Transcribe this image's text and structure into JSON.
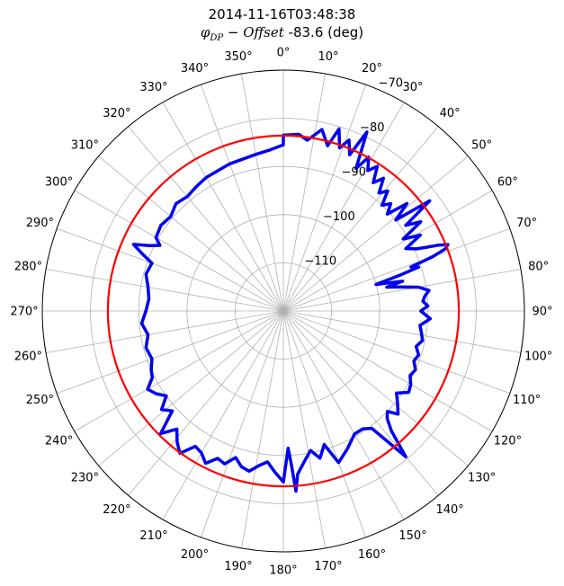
{
  "chart_data": {
    "type": "line",
    "projection": "polar",
    "title": "2014-11-16T03:48:38",
    "subtitle": {
      "symbol": "φ",
      "subscript": "DP",
      "operator": " − ",
      "term": "Offset",
      "rest": " -83.6 (deg)"
    },
    "theta_direction": "clockwise",
    "theta_zero": "top",
    "theta_ticks": [
      "0°",
      "10°",
      "20°",
      "30°",
      "40°",
      "50°",
      "60°",
      "70°",
      "80°",
      "90°",
      "100°",
      "110°",
      "120°",
      "130°",
      "140°",
      "150°",
      "160°",
      "170°",
      "180°",
      "190°",
      "200°",
      "210°",
      "220°",
      "230°",
      "240°",
      "250°",
      "260°",
      "270°",
      "280°",
      "290°",
      "300°",
      "310°",
      "320°",
      "330°",
      "340°",
      "350°"
    ],
    "r_ticks": [
      "−110",
      "−100",
      "−90",
      "−80",
      "−70"
    ],
    "r_tick_values": [
      -110,
      -100,
      -90,
      -80,
      -70
    ],
    "rlim": [
      -120,
      -70
    ],
    "grid": true,
    "series": [
      {
        "color": "#0000ee",
        "theta_deg": [
          0,
          5,
          8,
          12,
          15,
          17,
          19,
          21,
          23,
          25,
          27,
          29,
          31,
          33,
          35,
          37,
          39,
          41,
          43,
          45,
          47,
          49,
          51,
          53,
          55,
          57,
          59,
          61,
          63,
          65,
          66,
          67,
          68,
          69,
          70,
          71,
          72,
          73,
          74,
          75,
          76,
          77,
          78,
          80,
          82,
          84,
          86,
          88,
          90,
          93,
          96,
          99,
          102,
          105,
          108,
          111,
          114,
          117,
          120,
          123,
          126,
          129,
          132,
          134,
          136,
          138,
          140,
          143,
          146,
          150,
          155,
          160,
          163,
          166,
          169,
          172,
          175,
          176,
          177,
          178,
          180,
          183,
          186,
          189,
          192,
          195,
          198,
          201,
          204,
          207,
          210,
          213,
          216,
          219,
          222,
          225,
          228,
          231,
          234,
          237,
          240,
          243,
          246,
          250,
          255,
          260,
          265,
          270,
          275,
          280,
          285,
          290,
          292,
          294,
          296,
          298,
          300,
          305,
          310,
          315,
          320,
          325,
          330,
          340,
          350,
          355,
          360
        ],
        "r": [
          -83.5,
          -83.2,
          -84.2,
          -81.5,
          -84.5,
          -80.5,
          -84.2,
          -82,
          -84.8,
          -79,
          -86.8,
          -83.5,
          -86,
          -84.2,
          -87.5,
          -85.5,
          -88.5,
          -87,
          -90,
          -88.5,
          -90.5,
          -86,
          -90,
          -82,
          -89,
          -86,
          -91,
          -87.5,
          -91.5,
          -89.5,
          -87.5,
          -85,
          -83.2,
          -84,
          -87,
          -92,
          -90.5,
          -95,
          -100,
          -97.5,
          -94.5,
          -98,
          -96,
          -91.5,
          -89.5,
          -90.5,
          -91,
          -90,
          -91.5,
          -89.5,
          -91.5,
          -91,
          -90.5,
          -91.5,
          -90.5,
          -91,
          -90,
          -90.5,
          -89.5,
          -89,
          -91,
          -89.5,
          -88,
          -90,
          -89,
          -86.5,
          -80.5,
          -89.5,
          -90.5,
          -90.5,
          -88.5,
          -86.5,
          -91,
          -88.5,
          -90.5,
          -88.5,
          -86,
          -82.5,
          -88,
          -91.5,
          -84.5,
          -86.5,
          -88.5,
          -87.5,
          -86,
          -86.5,
          -88,
          -86,
          -86.5,
          -84.5,
          -86,
          -86.5,
          -83.5,
          -85,
          -87,
          -84,
          -89,
          -87.5,
          -90,
          -88.5,
          -87.5,
          -89.5,
          -90,
          -91,
          -90.5,
          -91.5,
          -90.5,
          -91.5,
          -92,
          -91.5,
          -90.5,
          -91,
          -88.5,
          -86,
          -89,
          -91,
          -89.5,
          -89,
          -89.5,
          -88.5,
          -89,
          -88.5,
          -88,
          -87.5,
          -87,
          -86.5,
          -85.5,
          -85.5,
          -83.5
        ]
      },
      {
        "color": "#ff0000",
        "function": "circle",
        "r_constant": -83.6
      }
    ]
  }
}
